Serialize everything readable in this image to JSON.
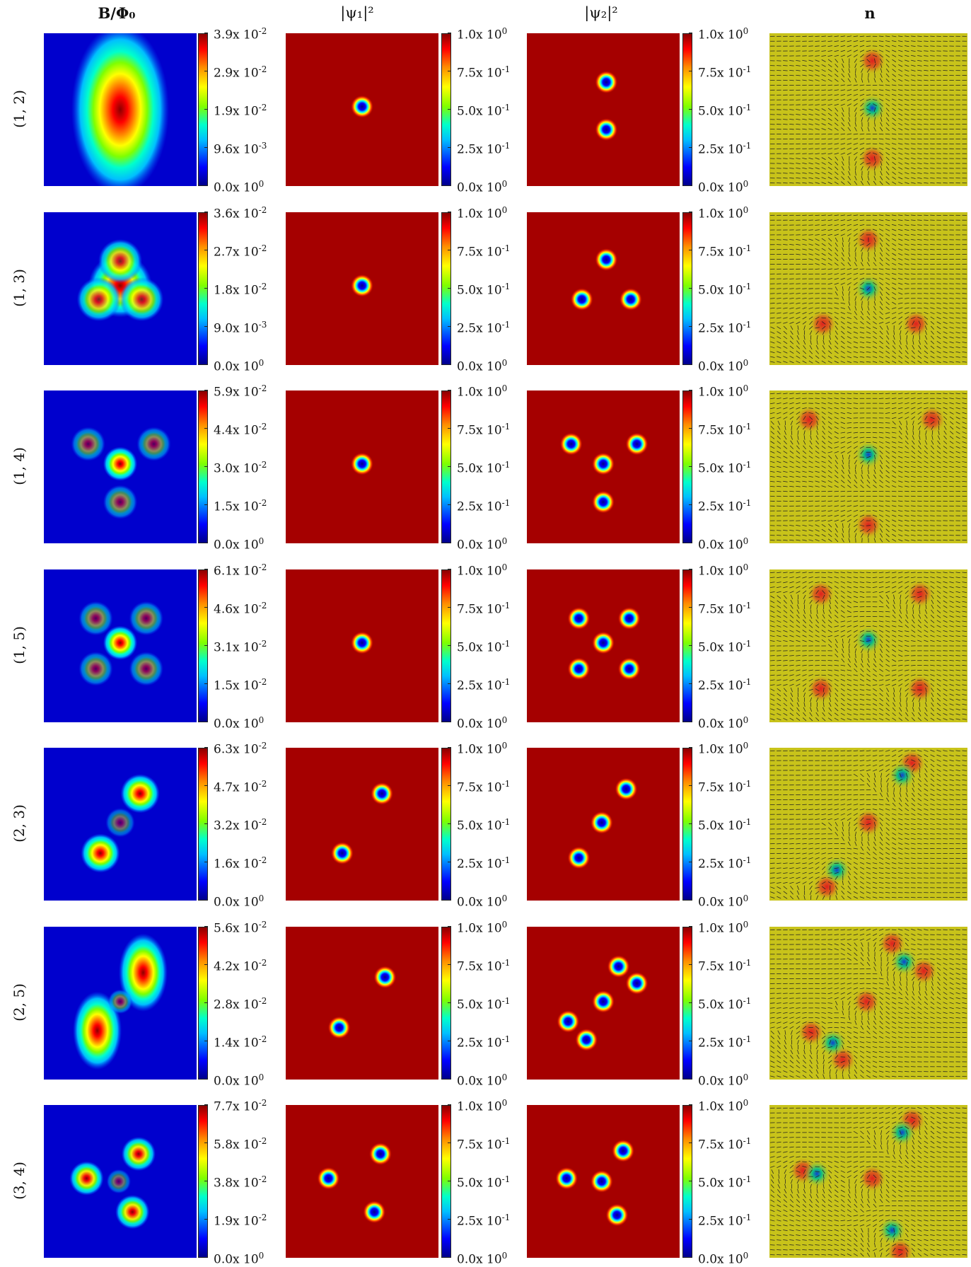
{
  "columns": [
    {
      "key": "B",
      "label": "B/Φ₀",
      "bold": true
    },
    {
      "key": "psi1",
      "label": "|ψ₁|²",
      "bold": false
    },
    {
      "key": "psi2",
      "label": "|ψ₂|²",
      "bold": false
    },
    {
      "key": "n",
      "label": "n",
      "bold": true
    }
  ],
  "colors": {
    "field_low": "#0000cd",
    "field_high": "#8b0000",
    "order_bulk": "#a50000",
    "vortex_core": "#0000cd",
    "n_background": "#c8c31a"
  },
  "psi_colorbar": {
    "ticks": [
      {
        "m": "1.0",
        "e": "0"
      },
      {
        "m": "7.5",
        "e": "-1"
      },
      {
        "m": "5.0",
        "e": "-1"
      },
      {
        "m": "2.5",
        "e": "-1"
      },
      {
        "m": "0.0",
        "e": "0"
      }
    ]
  },
  "rows": [
    {
      "label": "(1, 2)",
      "B_ticks": [
        {
          "m": "3.9",
          "e": "-2"
        },
        {
          "m": "2.9",
          "e": "-2"
        },
        {
          "m": "1.9",
          "e": "-2"
        },
        {
          "m": "9.6",
          "e": "-3"
        },
        {
          "m": "0.0",
          "e": "0"
        }
      ],
      "psi1": [
        [
          0.5,
          0.48
        ]
      ],
      "psi2": [
        [
          0.52,
          0.32
        ],
        [
          0.52,
          0.63
        ]
      ],
      "n_hedgehogs": [
        [
          0.52,
          0.18
        ],
        [
          0.52,
          0.82
        ]
      ],
      "n_centers": [
        [
          0.52,
          0.49
        ]
      ],
      "B_blobs": [
        [
          0.5,
          0.5,
          0.2,
          0.35,
          1.0
        ]
      ]
    },
    {
      "label": "(1, 3)",
      "B_ticks": [
        {
          "m": "3.6",
          "e": "-2"
        },
        {
          "m": "2.7",
          "e": "-2"
        },
        {
          "m": "1.8",
          "e": "-2"
        },
        {
          "m": "9.0",
          "e": "-3"
        },
        {
          "m": "0.0",
          "e": "0"
        }
      ],
      "psi1": [
        [
          0.5,
          0.48
        ]
      ],
      "psi2": [
        [
          0.52,
          0.31
        ],
        [
          0.36,
          0.57
        ],
        [
          0.68,
          0.57
        ]
      ],
      "n_hedgehogs": [
        [
          0.5,
          0.18
        ],
        [
          0.27,
          0.73
        ],
        [
          0.74,
          0.73
        ]
      ],
      "n_centers": [
        [
          0.5,
          0.5
        ]
      ],
      "B_blobs": [
        [
          0.5,
          0.48,
          0.13,
          0.13,
          1.0
        ],
        [
          0.5,
          0.32,
          0.09,
          0.09,
          0.85
        ],
        [
          0.36,
          0.57,
          0.09,
          0.09,
          0.85
        ],
        [
          0.64,
          0.57,
          0.09,
          0.09,
          0.85
        ]
      ]
    },
    {
      "label": "(1, 4)",
      "B_ticks": [
        {
          "m": "5.9",
          "e": "-2"
        },
        {
          "m": "4.4",
          "e": "-2"
        },
        {
          "m": "3.0",
          "e": "-2"
        },
        {
          "m": "1.5",
          "e": "-2"
        },
        {
          "m": "0.0",
          "e": "0"
        }
      ],
      "psi1": [
        [
          0.5,
          0.48
        ]
      ],
      "psi2": [
        [
          0.29,
          0.35
        ],
        [
          0.72,
          0.35
        ],
        [
          0.5,
          0.48
        ],
        [
          0.5,
          0.73
        ]
      ],
      "n_hedgehogs": [
        [
          0.2,
          0.19
        ],
        [
          0.82,
          0.19
        ],
        [
          0.5,
          0.88
        ]
      ],
      "n_centers": [
        [
          0.5,
          0.42
        ]
      ],
      "B_blobs": [
        [
          0.5,
          0.48,
          0.07,
          0.07,
          1.0
        ],
        [
          0.29,
          0.35,
          0.07,
          0.07,
          0.55
        ],
        [
          0.72,
          0.35,
          0.07,
          0.07,
          0.55
        ],
        [
          0.5,
          0.73,
          0.07,
          0.07,
          0.55
        ]
      ]
    },
    {
      "label": "(1, 5)",
      "B_ticks": [
        {
          "m": "6.1",
          "e": "-2"
        },
        {
          "m": "4.6",
          "e": "-2"
        },
        {
          "m": "3.1",
          "e": "-2"
        },
        {
          "m": "1.5",
          "e": "-2"
        },
        {
          "m": "0.0",
          "e": "0"
        }
      ],
      "psi1": [
        [
          0.5,
          0.48
        ]
      ],
      "psi2": [
        [
          0.34,
          0.32
        ],
        [
          0.67,
          0.32
        ],
        [
          0.5,
          0.48
        ],
        [
          0.34,
          0.65
        ],
        [
          0.67,
          0.65
        ]
      ],
      "n_hedgehogs": [
        [
          0.26,
          0.16
        ],
        [
          0.76,
          0.16
        ],
        [
          0.26,
          0.78
        ],
        [
          0.76,
          0.78
        ]
      ],
      "n_centers": [
        [
          0.5,
          0.46
        ]
      ],
      "B_blobs": [
        [
          0.5,
          0.48,
          0.07,
          0.07,
          1.0
        ],
        [
          0.34,
          0.32,
          0.07,
          0.07,
          0.55
        ],
        [
          0.67,
          0.32,
          0.07,
          0.07,
          0.55
        ],
        [
          0.34,
          0.65,
          0.07,
          0.07,
          0.55
        ],
        [
          0.67,
          0.65,
          0.07,
          0.07,
          0.55
        ]
      ]
    },
    {
      "label": "(2, 3)",
      "B_ticks": [
        {
          "m": "6.3",
          "e": "-2"
        },
        {
          "m": "4.7",
          "e": "-2"
        },
        {
          "m": "3.2",
          "e": "-2"
        },
        {
          "m": "1.6",
          "e": "-2"
        },
        {
          "m": "0.0",
          "e": "0"
        }
      ],
      "psi1": [
        [
          0.63,
          0.3
        ],
        [
          0.37,
          0.69
        ]
      ],
      "psi2": [
        [
          0.65,
          0.27
        ],
        [
          0.49,
          0.49
        ],
        [
          0.34,
          0.72
        ]
      ],
      "n_hedgehogs": [
        [
          0.72,
          0.1
        ],
        [
          0.5,
          0.49
        ],
        [
          0.29,
          0.91
        ]
      ],
      "n_centers": [
        [
          0.67,
          0.18
        ],
        [
          0.34,
          0.8
        ]
      ],
      "B_blobs": [
        [
          0.63,
          0.3,
          0.08,
          0.08,
          1.0
        ],
        [
          0.37,
          0.69,
          0.08,
          0.08,
          1.0
        ],
        [
          0.5,
          0.49,
          0.06,
          0.06,
          0.45
        ]
      ]
    },
    {
      "label": "(2, 5)",
      "B_ticks": [
        {
          "m": "5.6",
          "e": "-2"
        },
        {
          "m": "4.2",
          "e": "-2"
        },
        {
          "m": "2.8",
          "e": "-2"
        },
        {
          "m": "1.4",
          "e": "-2"
        },
        {
          "m": "0.0",
          "e": "0"
        }
      ],
      "psi1": [
        [
          0.65,
          0.33
        ],
        [
          0.35,
          0.66
        ]
      ],
      "psi2": [
        [
          0.6,
          0.26
        ],
        [
          0.72,
          0.37
        ],
        [
          0.5,
          0.49
        ],
        [
          0.27,
          0.62
        ],
        [
          0.39,
          0.74
        ]
      ],
      "n_hedgehogs": [
        [
          0.62,
          0.11
        ],
        [
          0.78,
          0.29
        ],
        [
          0.49,
          0.49
        ],
        [
          0.21,
          0.69
        ],
        [
          0.37,
          0.87
        ]
      ],
      "n_centers": [
        [
          0.68,
          0.23
        ],
        [
          0.32,
          0.76
        ]
      ],
      "B_blobs": [
        [
          0.65,
          0.3,
          0.1,
          0.16,
          1.0
        ],
        [
          0.35,
          0.68,
          0.1,
          0.16,
          1.0
        ],
        [
          0.5,
          0.49,
          0.05,
          0.05,
          0.5
        ]
      ]
    },
    {
      "label": "(3, 4)",
      "B_ticks": [
        {
          "m": "7.7",
          "e": "-2"
        },
        {
          "m": "5.8",
          "e": "-2"
        },
        {
          "m": "3.8",
          "e": "-2"
        },
        {
          "m": "1.9",
          "e": "-2"
        },
        {
          "m": "0.0",
          "e": "0"
        }
      ],
      "psi1": [
        [
          0.62,
          0.32
        ],
        [
          0.28,
          0.48
        ],
        [
          0.58,
          0.7
        ]
      ],
      "psi2": [
        [
          0.63,
          0.3
        ],
        [
          0.26,
          0.48
        ],
        [
          0.49,
          0.5
        ],
        [
          0.59,
          0.72
        ]
      ],
      "n_hedgehogs": [
        [
          0.72,
          0.1
        ],
        [
          0.17,
          0.43
        ],
        [
          0.52,
          0.48
        ],
        [
          0.66,
          0.96
        ]
      ],
      "n_centers": [
        [
          0.67,
          0.18
        ],
        [
          0.24,
          0.45
        ],
        [
          0.62,
          0.82
        ]
      ],
      "B_blobs": [
        [
          0.62,
          0.32,
          0.07,
          0.07,
          0.95
        ],
        [
          0.28,
          0.48,
          0.07,
          0.07,
          0.95
        ],
        [
          0.58,
          0.7,
          0.07,
          0.07,
          0.95
        ],
        [
          0.49,
          0.5,
          0.05,
          0.05,
          0.45
        ]
      ]
    }
  ]
}
